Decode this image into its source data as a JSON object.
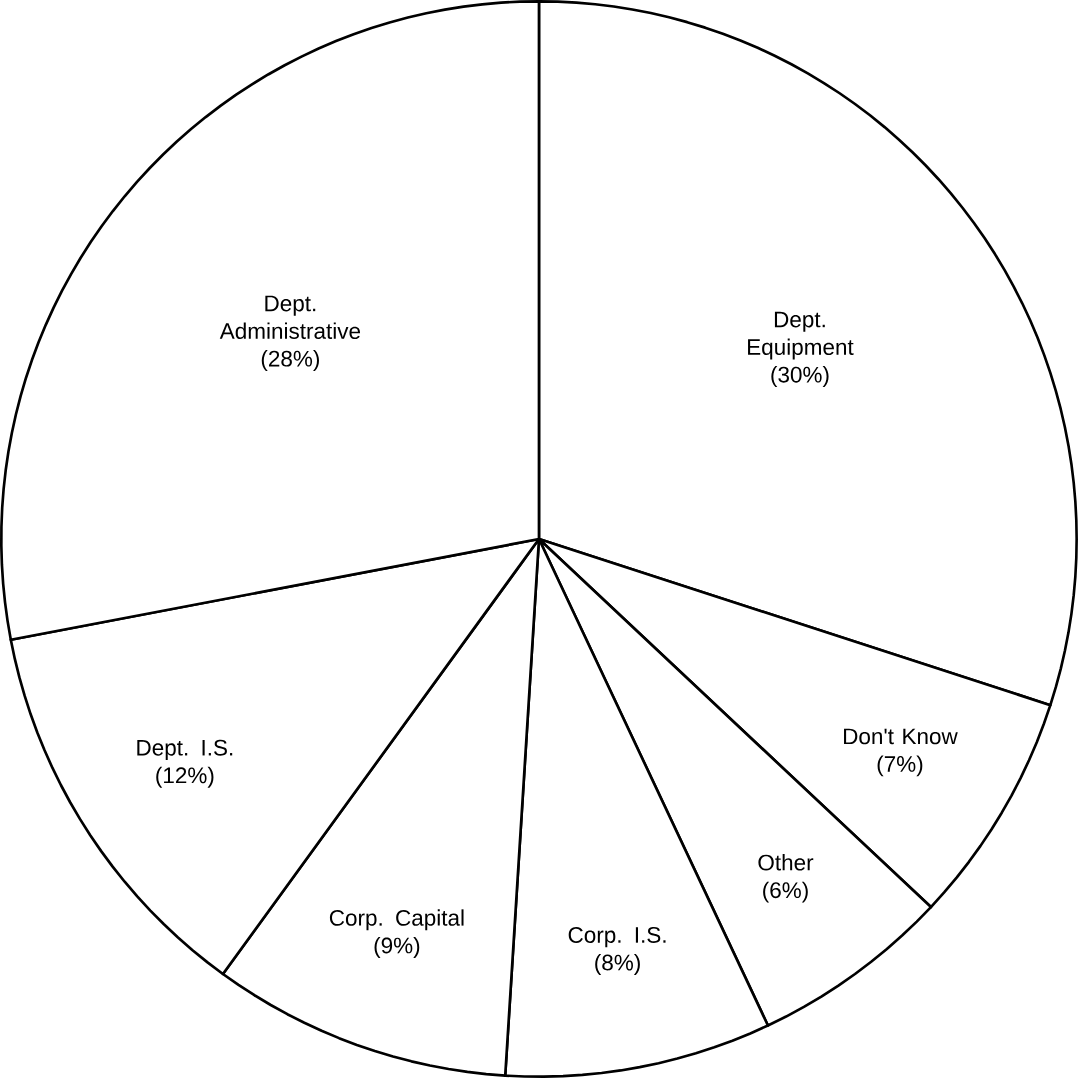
{
  "chart_data": {
    "type": "pie",
    "categories": [
      "Dept. Equipment",
      "Don't Know",
      "Other",
      "Corp. I.S.",
      "Corp. Capital",
      "Dept. I.S.",
      "Dept. Administrative"
    ],
    "values": [
      30,
      7,
      6,
      8,
      9,
      12,
      28
    ],
    "value_labels": [
      "(30%)",
      "(7%)",
      "(6%)",
      "(8%)",
      "(9%)",
      "(12%)",
      "(28%)"
    ],
    "colors": [
      "#ffffff",
      "#ffffff",
      "#ffffff",
      "#ffffff",
      "#ffffff",
      "#ffffff",
      "#ffffff"
    ]
  }
}
